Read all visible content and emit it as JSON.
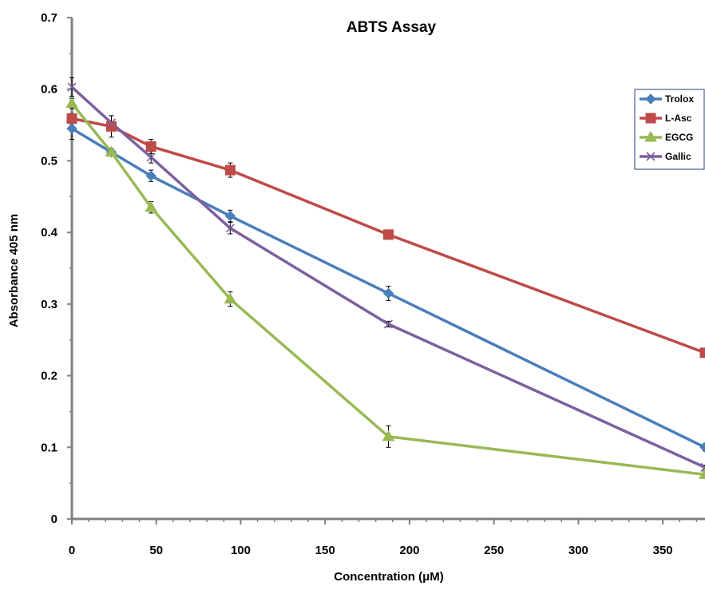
{
  "chart_data": {
    "type": "line",
    "title": "ABTS Assay",
    "xlabel": "Concentration (μM)",
    "ylabel": "Absorbance 405 nm",
    "xlim": [
      0,
      375
    ],
    "ylim": [
      0,
      0.7
    ],
    "x_ticks": [
      0,
      50,
      100,
      150,
      200,
      250,
      300,
      350
    ],
    "y_ticks": [
      0,
      0.1,
      0.2,
      0.3,
      0.4,
      0.5,
      0.6,
      0.7
    ],
    "x_tick_labels": [
      "0",
      "50",
      "100",
      "150",
      "200",
      "250",
      "300",
      "350"
    ],
    "y_tick_labels": [
      "0",
      "0.1",
      "0.2",
      "0.3",
      "0.4",
      "0.5",
      "0.6",
      "0.7"
    ],
    "grid": false,
    "legend_position": "top-right",
    "series": [
      {
        "name": "Trolox",
        "color": "#4a7ebb",
        "marker": "diamond",
        "x": [
          0,
          23.4,
          46.9,
          93.8,
          187.5,
          375
        ],
        "y": [
          0.545,
          0.512,
          0.479,
          0.423,
          0.315,
          0.1
        ],
        "err": [
          0.015,
          0.005,
          0.008,
          0.008,
          0.01,
          0.005
        ]
      },
      {
        "name": "L-Asc",
        "color": "#be4b48",
        "marker": "square",
        "x": [
          0,
          23.4,
          46.9,
          93.8,
          187.5,
          375
        ],
        "y": [
          0.559,
          0.548,
          0.52,
          0.487,
          0.397,
          0.232
        ],
        "err": [
          0.007,
          0.015,
          0.01,
          0.01,
          0.006,
          0.005
        ]
      },
      {
        "name": "EGCG",
        "color": "#98b954",
        "marker": "triangle",
        "x": [
          0,
          23.4,
          46.9,
          93.8,
          187.5,
          375
        ],
        "y": [
          0.58,
          0.512,
          0.435,
          0.307,
          0.115,
          0.062
        ],
        "err": [
          0.007,
          0.005,
          0.008,
          0.01,
          0.015,
          0.005
        ]
      },
      {
        "name": "Gallic",
        "color": "#7d60a0",
        "marker": "x",
        "x": [
          0,
          23.4,
          46.9,
          93.8,
          187.5,
          375
        ],
        "y": [
          0.603,
          0.553,
          0.505,
          0.406,
          0.272,
          0.072
        ],
        "err": [
          0.013,
          0.01,
          0.008,
          0.008,
          0.004,
          0.003
        ]
      }
    ]
  }
}
